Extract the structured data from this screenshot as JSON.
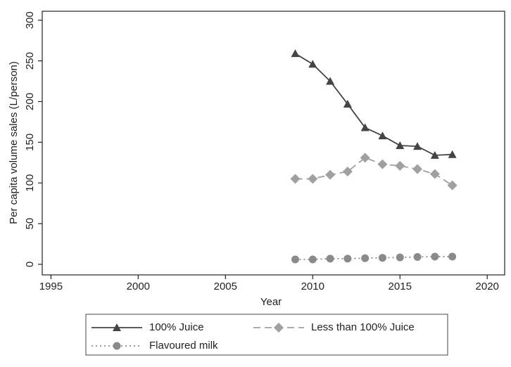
{
  "chart_data": {
    "type": "line",
    "x_label": "Year",
    "y_label": "Per capita volume sales (L/person)",
    "x": [
      2009,
      2010,
      2011,
      2012,
      2013,
      2014,
      2015,
      2016,
      2017,
      2018
    ],
    "series": [
      {
        "name": "100% Juice",
        "color": "#444444",
        "marker": "triangle",
        "dash": "solid",
        "values": [
          259,
          246,
          225,
          197,
          168,
          158,
          146,
          145,
          134,
          135
        ]
      },
      {
        "name": "Less than 100% Juice",
        "color": "#a0a0a0",
        "marker": "diamond",
        "dash": "dashed",
        "values": [
          105,
          105,
          110,
          114,
          131,
          123,
          121,
          117,
          111,
          97
        ]
      },
      {
        "name": "Flavoured milk",
        "color": "#8a8a8a",
        "marker": "circle",
        "dash": "dotted",
        "values": [
          6,
          6,
          7,
          7,
          7.5,
          8,
          8.5,
          9,
          9.5,
          9.5
        ]
      }
    ],
    "xlim": [
      1994.5,
      2021
    ],
    "xticks": [
      1995,
      2000,
      2005,
      2010,
      2015,
      2020
    ],
    "ylim": [
      -13,
      311
    ],
    "yticks": [
      0,
      50,
      100,
      150,
      200,
      250,
      300
    ],
    "grid": false
  }
}
